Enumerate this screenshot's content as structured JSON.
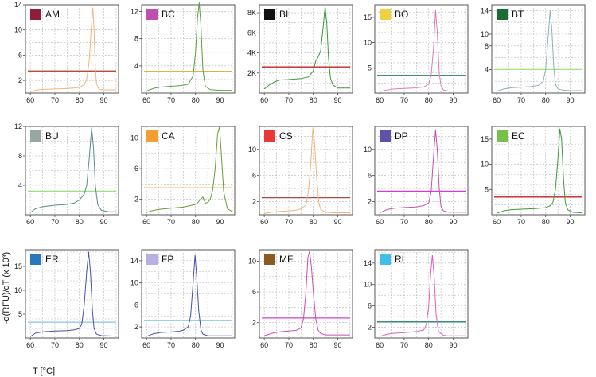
{
  "figure": {
    "ylabel": "-d(RFU)/dT (x 10³)",
    "xlabel": "T [°C]"
  },
  "chart_data": [
    {
      "type": "line",
      "label": "AM",
      "swatch": "#8e1f3a",
      "curve_color": "#f4b27a",
      "thr_color": "#b03020",
      "threshold": 3.5,
      "ylim": [
        0,
        14
      ],
      "yticks": [
        2,
        6,
        10,
        14
      ],
      "xlim": [
        58,
        96
      ],
      "xticks": [
        60,
        70,
        80,
        90
      ],
      "x": [
        60,
        63,
        66,
        70,
        74,
        78,
        80,
        82,
        83,
        84,
        84.8,
        85.5,
        86,
        86.5,
        87,
        88,
        90,
        95
      ],
      "values": [
        0.2,
        0.5,
        0.6,
        0.65,
        0.7,
        0.8,
        0.9,
        1.3,
        2.2,
        5,
        10,
        13.5,
        10,
        4,
        1.5,
        0.6,
        0.5,
        0.5
      ]
    },
    {
      "type": "line",
      "label": "BC",
      "swatch": "#c050b0",
      "curve_color": "#5aa040",
      "thr_color": "#e8b040",
      "threshold": 3.2,
      "ylim": [
        0,
        13
      ],
      "yticks": [
        4,
        8,
        12
      ],
      "xlim": [
        58,
        96
      ],
      "xticks": [
        60,
        70,
        80,
        90
      ],
      "x": [
        60,
        63,
        66,
        70,
        74,
        77,
        79,
        80,
        80.8,
        81.5,
        82.2,
        83,
        84,
        86,
        90,
        95
      ],
      "values": [
        0.3,
        0.7,
        0.9,
        1,
        1.1,
        1.3,
        2.5,
        6,
        11,
        13.3,
        10,
        3.5,
        1,
        0.5,
        0.4,
        0.4
      ]
    },
    {
      "type": "line",
      "label": "BI",
      "swatch": "#111111",
      "curve_color": "#3a9a38",
      "thr_color": "#c82020",
      "threshold": 2.6,
      "ylim": [
        0,
        8.8
      ],
      "yticks": [
        2,
        4,
        6,
        8
      ],
      "ytick_labels": [
        "2K",
        "4K",
        "6K",
        "8K"
      ],
      "xlim": [
        58,
        96
      ],
      "xticks": [
        60,
        70,
        80,
        90
      ],
      "x": [
        60,
        62,
        64,
        66,
        70,
        75,
        78,
        80,
        81,
        82,
        83,
        84,
        84.8,
        85.5,
        86.2,
        87,
        88,
        90,
        95
      ],
      "values": [
        0.4,
        0.8,
        1.1,
        1.3,
        1.35,
        1.45,
        1.6,
        2.2,
        3.2,
        3.6,
        4.2,
        6.5,
        8.6,
        7,
        3.5,
        1.5,
        0.8,
        0.5,
        0.5
      ]
    },
    {
      "type": "line",
      "label": "BO",
      "swatch": "#f2d23c",
      "curve_color": "#e27ab8",
      "thr_color": "#20806a",
      "threshold": 3.5,
      "ylim": [
        0,
        17.5
      ],
      "yticks": [
        5,
        10,
        15
      ],
      "xlim": [
        58,
        96
      ],
      "xticks": [
        60,
        70,
        80,
        90
      ],
      "x": [
        60,
        63,
        66,
        70,
        74,
        78,
        80,
        81,
        82,
        82.8,
        83.5,
        84.3,
        85,
        86,
        88,
        95
      ],
      "values": [
        0.3,
        0.6,
        0.8,
        0.9,
        1,
        1.2,
        1.8,
        3.5,
        9,
        16.5,
        12,
        4,
        1.5,
        0.6,
        0.4,
        0.4
      ]
    },
    {
      "type": "line",
      "label": "BT",
      "swatch": "#1a6b35",
      "curve_color": "#8fb0b8",
      "thr_color": "#a8e080",
      "threshold": 4.0,
      "ylim": [
        0,
        15
      ],
      "yticks": [
        4,
        8,
        10,
        14
      ],
      "xlim": [
        58,
        96
      ],
      "xticks": [
        60,
        70,
        80,
        90
      ],
      "x": [
        60,
        63,
        66,
        70,
        74,
        77,
        79,
        80,
        81,
        81.8,
        82.5,
        83.3,
        84,
        85,
        87,
        90,
        95
      ],
      "values": [
        0.3,
        0.7,
        0.9,
        1,
        1.1,
        1.3,
        2,
        4,
        9.5,
        14,
        11,
        4.5,
        1.5,
        0.7,
        0.5,
        0.4,
        0.4
      ]
    },
    {
      "type": "line",
      "label": "BU",
      "swatch": "#9aa6a0",
      "curve_color": "#5a8a8a",
      "thr_color": "#a0e080",
      "threshold": 3.2,
      "ylim": [
        0,
        12
      ],
      "yticks": [
        4,
        8,
        12
      ],
      "xlim": [
        58,
        96
      ],
      "xticks": [
        60,
        70,
        80,
        90
      ],
      "x": [
        60,
        62,
        65,
        70,
        75,
        78,
        80,
        82,
        83,
        84,
        85,
        85.8,
        86.5,
        87.5,
        89,
        92,
        95
      ],
      "values": [
        0.3,
        0.8,
        1.1,
        1.3,
        1.4,
        1.6,
        2,
        2.8,
        4,
        7.5,
        11.8,
        9,
        4,
        1.4,
        0.6,
        0.4,
        0.4
      ]
    },
    {
      "type": "line",
      "label": "CA",
      "swatch": "#f0a030",
      "curve_color": "#6a9a3a",
      "thr_color": "#f0a030",
      "threshold": 3.5,
      "ylim": [
        0,
        11.5
      ],
      "yticks": [
        2,
        6,
        10
      ],
      "xlim": [
        58,
        96
      ],
      "xticks": [
        60,
        70,
        80,
        90
      ],
      "x": [
        60,
        62,
        65,
        70,
        75,
        78,
        80,
        81,
        82,
        83,
        84,
        85,
        86,
        87,
        88,
        89,
        89.8,
        90.5,
        91.5,
        93,
        95
      ],
      "values": [
        0.3,
        0.5,
        0.7,
        0.85,
        1,
        1.2,
        1.35,
        1.6,
        2,
        2.3,
        1.5,
        1.6,
        2,
        3.2,
        6,
        10.5,
        11.5,
        8,
        3,
        0.8,
        0.4
      ]
    },
    {
      "type": "line",
      "label": "CS",
      "swatch": "#e83838",
      "curve_color": "#f4b27a",
      "thr_color": "#a84848",
      "threshold": 2.6,
      "ylim": [
        0,
        13.5
      ],
      "yticks": [
        2,
        6,
        10
      ],
      "xlim": [
        58,
        96
      ],
      "xticks": [
        60,
        70,
        80,
        90
      ],
      "x": [
        60,
        63,
        66,
        70,
        73,
        75,
        77,
        78,
        79,
        79.8,
        80.5,
        81.3,
        82.2,
        83,
        85,
        88,
        95
      ],
      "values": [
        0.2,
        0.4,
        0.5,
        0.6,
        0.7,
        0.9,
        1.5,
        3.5,
        8,
        13.2,
        11,
        6,
        2,
        0.8,
        0.4,
        0.3,
        0.3
      ]
    },
    {
      "type": "line",
      "label": "DP",
      "swatch": "#6050a8",
      "curve_color": "#c050b0",
      "thr_color": "#d040d0",
      "threshold": 3.6,
      "ylim": [
        0,
        13.5
      ],
      "yticks": [
        2,
        6,
        10
      ],
      "xlim": [
        58,
        96
      ],
      "xticks": [
        60,
        70,
        80,
        90
      ],
      "x": [
        60,
        63,
        66,
        70,
        75,
        78,
        80,
        81,
        82,
        82.8,
        83.5,
        84.3,
        85,
        86,
        88,
        95
      ],
      "values": [
        0.3,
        0.8,
        1,
        1.1,
        1.2,
        1.4,
        1.8,
        3.5,
        9,
        13,
        10,
        4,
        1.3,
        0.6,
        0.4,
        0.4
      ]
    },
    {
      "type": "line",
      "label": "EC",
      "swatch": "#78c048",
      "curve_color": "#3a9a38",
      "thr_color": "#c82020",
      "threshold": 3.5,
      "ylim": [
        0,
        17.5
      ],
      "yticks": [
        5,
        10,
        15
      ],
      "xlim": [
        58,
        96
      ],
      "xticks": [
        60,
        70,
        80,
        90
      ],
      "x": [
        60,
        63,
        66,
        70,
        75,
        80,
        82,
        83,
        84,
        85,
        85.8,
        86.5,
        87.3,
        88,
        89,
        91,
        95
      ],
      "values": [
        0.3,
        0.8,
        1,
        1.1,
        1.2,
        1.4,
        1.8,
        2.5,
        5,
        11,
        17,
        15,
        7,
        2.5,
        1,
        0.5,
        0.4
      ]
    },
    {
      "type": "line",
      "label": "ER",
      "swatch": "#2878c0",
      "curve_color": "#4a50a0",
      "thr_color": "#90c8e8",
      "threshold": 3.3,
      "ylim": [
        0,
        18.5
      ],
      "yticks": [
        5,
        10,
        15
      ],
      "xlim": [
        58,
        96
      ],
      "xticks": [
        60,
        70,
        80,
        90
      ],
      "x": [
        60,
        62,
        65,
        70,
        75,
        78,
        80,
        81,
        82,
        83,
        83.8,
        84.5,
        85.3,
        86,
        87,
        89,
        95
      ],
      "values": [
        0.3,
        1,
        1.3,
        1.45,
        1.55,
        1.7,
        2,
        3,
        7,
        14,
        18,
        14,
        6,
        2,
        0.8,
        0.5,
        0.4
      ]
    },
    {
      "type": "line",
      "label": "FP",
      "swatch": "#b8b0e0",
      "curve_color": "#4a50a0",
      "thr_color": "#90c8e8",
      "threshold": 3.2,
      "ylim": [
        0,
        16
      ],
      "yticks": [
        2,
        6,
        10,
        14
      ],
      "xlim": [
        58,
        96
      ],
      "xticks": [
        60,
        70,
        80,
        90
      ],
      "x": [
        60,
        63,
        66,
        70,
        73,
        75,
        77,
        78,
        79,
        79.8,
        80.5,
        81.3,
        82.2,
        83,
        85,
        88,
        95
      ],
      "values": [
        0.3,
        0.8,
        1,
        1.1,
        1.2,
        1.4,
        2,
        4,
        10,
        15,
        11,
        5,
        1.5,
        0.7,
        0.4,
        0.4,
        0.4
      ]
    },
    {
      "type": "line",
      "label": "MF",
      "swatch": "#8a5a20",
      "curve_color": "#d04ab0",
      "thr_color": "#d040d0",
      "threshold": 2.6,
      "ylim": [
        0,
        11.5
      ],
      "yticks": [
        2,
        6,
        10
      ],
      "xlim": [
        58,
        96
      ],
      "xticks": [
        60,
        70,
        80,
        90
      ],
      "x": [
        60,
        63,
        66,
        70,
        73,
        75,
        76,
        77,
        77.8,
        78.5,
        79.3,
        80,
        81,
        82,
        83,
        85,
        88,
        95
      ],
      "values": [
        0.3,
        0.6,
        0.8,
        0.9,
        1,
        1.3,
        2.5,
        6,
        10.5,
        11.3,
        9,
        6,
        2.5,
        1,
        0.6,
        0.4,
        0.4,
        0.4
      ]
    },
    {
      "type": "line",
      "label": "RI",
      "swatch": "#40c0e8",
      "curve_color": "#e060b8",
      "thr_color": "#20806a",
      "threshold": 3.0,
      "ylim": [
        0,
        16.5
      ],
      "yticks": [
        2,
        6,
        10,
        14
      ],
      "xlim": [
        58,
        96
      ],
      "xticks": [
        60,
        70,
        80,
        90
      ],
      "x": [
        60,
        63,
        66,
        70,
        75,
        78,
        79,
        80,
        80.8,
        81.5,
        82.3,
        83,
        84,
        86,
        88,
        95
      ],
      "values": [
        0.3,
        0.7,
        0.9,
        1,
        1.2,
        1.5,
        2.5,
        6,
        12,
        15.5,
        11,
        4.5,
        1.2,
        0.5,
        0.4,
        0.4
      ]
    }
  ]
}
